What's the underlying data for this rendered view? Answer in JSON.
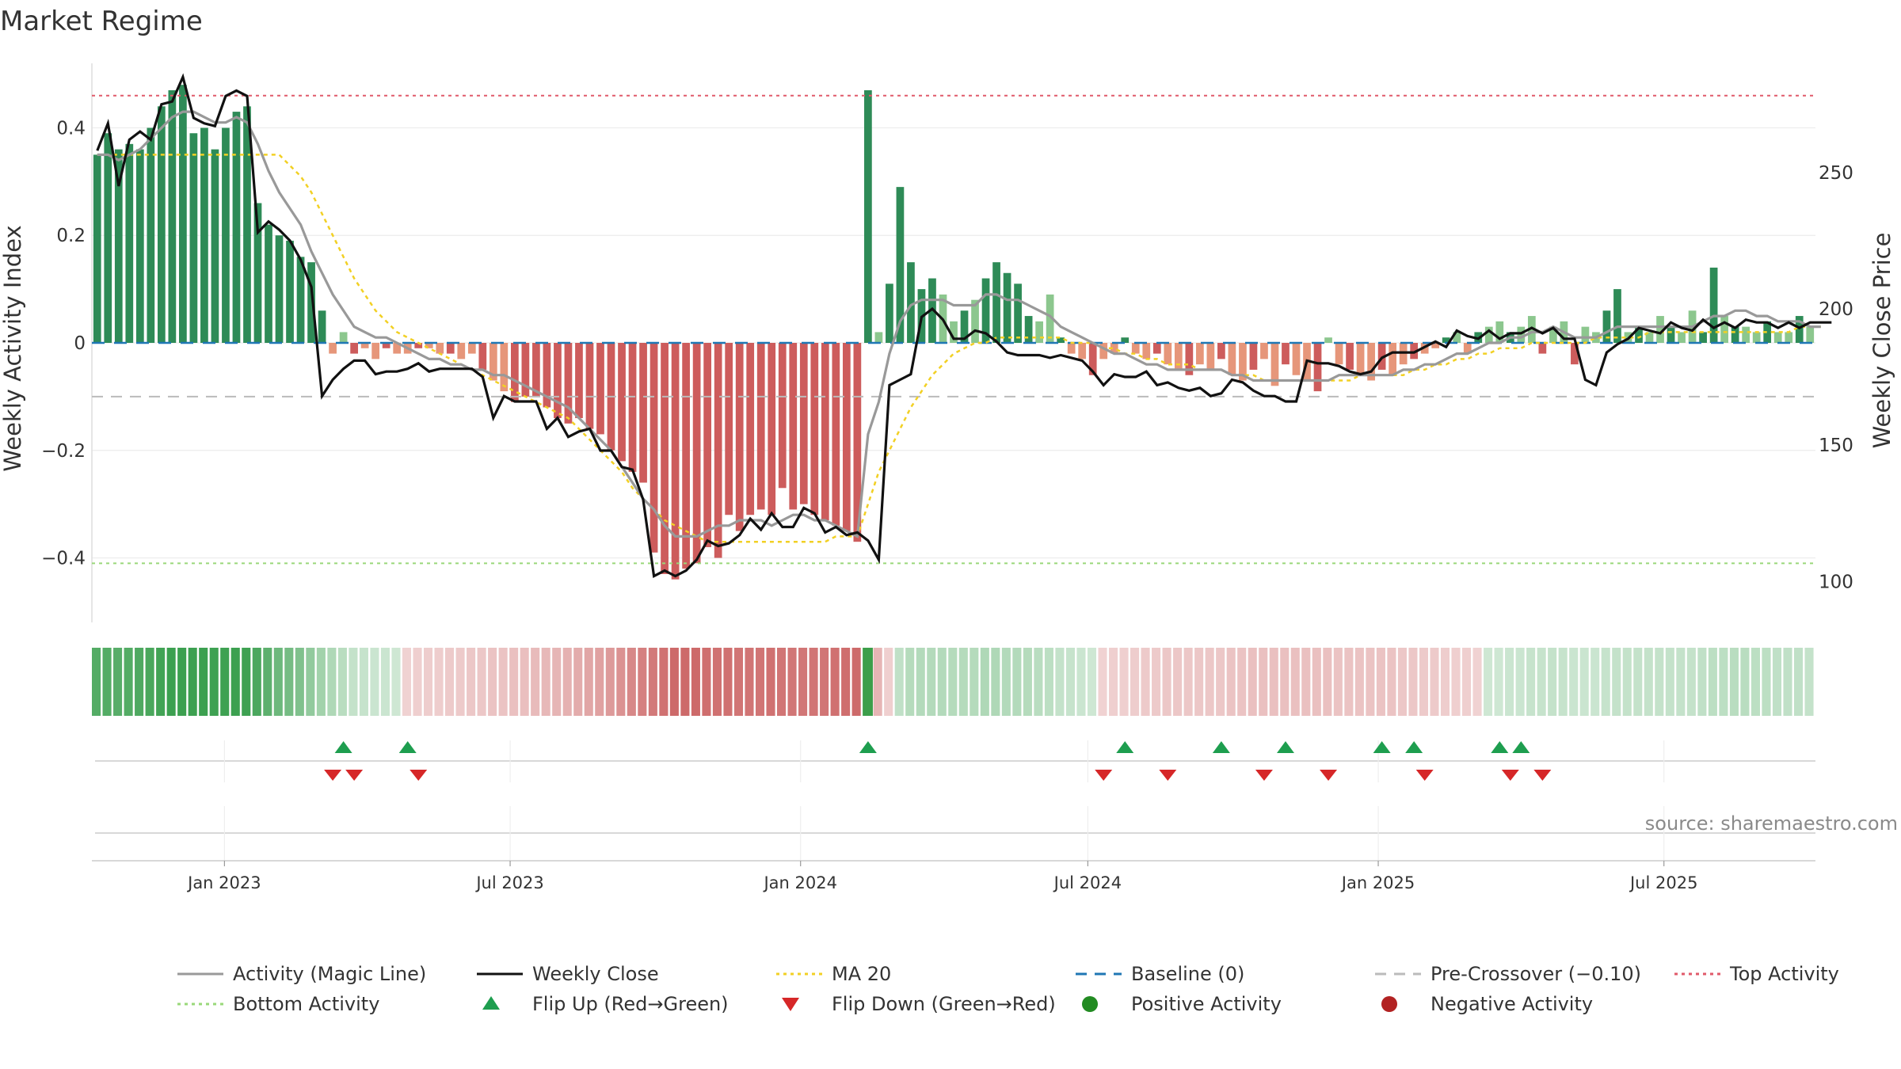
{
  "title": "Market Regime",
  "source": "source: sharemaestro.com",
  "colors": {
    "pos_dark": "#2e8b57",
    "pos_light": "#8cc78e",
    "neg_dark": "#cd5c5c",
    "neg_light": "#e6967a",
    "magic_line": "#999999",
    "weekly_close": "#111111",
    "ma20": "#f2d024",
    "baseline": "#1f77b4",
    "precross": "#bbbbbb",
    "top": "#e05a6a",
    "bottom": "#9ad87a",
    "flip_up": "#1e9e4f",
    "flip_down": "#d62728",
    "pos_dot": "#228b22",
    "neg_dot": "#b22222"
  },
  "chart_data": {
    "type": "bar",
    "title": "Market Regime",
    "ylabel_left": "Weekly Activity Index",
    "ylabel_right": "Weekly Close Price",
    "x_start": "2022-10-09",
    "x_end": "2025-10-05",
    "x_ticks": [
      "Jan 2023",
      "Jul 2023",
      "Jan 2024",
      "Jul 2024",
      "Jan 2025",
      "Jul 2025"
    ],
    "x_tick_dates": [
      "2023-01-01",
      "2023-07-01",
      "2024-01-01",
      "2024-07-01",
      "2025-01-01",
      "2025-07-01"
    ],
    "y_left_range": [
      -0.52,
      0.52
    ],
    "y_left_ticks": [
      0.4,
      0.2,
      0,
      -0.2,
      -0.4
    ],
    "y_left_tick_labels": [
      "0.4",
      "0.2",
      "0",
      "−0.2",
      "−0.4"
    ],
    "y_right_range": [
      85,
      290
    ],
    "y_right_ticks": [
      250,
      200,
      150,
      100
    ],
    "y_right_tick_labels": [
      "250",
      "200",
      "150",
      "100"
    ],
    "top_activity": 0.46,
    "bottom_activity": -0.41,
    "baseline": 0,
    "pre_crossover": -0.1,
    "activity_bars": [
      0.35,
      0.39,
      0.36,
      0.37,
      0.36,
      0.4,
      0.44,
      0.47,
      0.48,
      0.39,
      0.4,
      0.36,
      0.4,
      0.43,
      0.44,
      0.26,
      0.22,
      0.2,
      0.19,
      0.16,
      0.15,
      0.06,
      -0.02,
      0.02,
      -0.02,
      -0.01,
      -0.03,
      -0.01,
      -0.02,
      -0.02,
      -0.01,
      -0.01,
      -0.02,
      -0.02,
      -0.03,
      -0.02,
      -0.05,
      -0.07,
      -0.09,
      -0.11,
      -0.1,
      -0.1,
      -0.12,
      -0.14,
      -0.15,
      -0.14,
      -0.16,
      -0.17,
      -0.2,
      -0.22,
      -0.24,
      -0.26,
      -0.39,
      -0.43,
      -0.44,
      -0.42,
      -0.41,
      -0.38,
      -0.4,
      -0.32,
      -0.35,
      -0.32,
      -0.31,
      -0.32,
      -0.27,
      -0.31,
      -0.3,
      -0.32,
      -0.33,
      -0.34,
      -0.35,
      -0.37,
      0.47,
      0.02,
      0.11,
      0.29,
      0.15,
      0.1,
      0.12,
      0.09,
      0.04,
      0.06,
      0.08,
      0.12,
      0.15,
      0.13,
      0.11,
      0.05,
      0.04,
      0.09,
      0.01,
      -0.02,
      -0.03,
      -0.06,
      -0.03,
      -0.02,
      0.01,
      -0.02,
      -0.03,
      -0.02,
      -0.04,
      -0.05,
      -0.06,
      -0.04,
      -0.05,
      -0.03,
      -0.06,
      -0.07,
      -0.05,
      -0.03,
      -0.08,
      -0.04,
      -0.06,
      -0.07,
      -0.09,
      0.01,
      -0.04,
      -0.05,
      -0.06,
      -0.07,
      -0.05,
      -0.06,
      -0.04,
      -0.03,
      -0.02,
      -0.01,
      0.01,
      0.02,
      -0.02,
      0.02,
      0.03,
      0.04,
      0.02,
      0.03,
      0.05,
      -0.02,
      0.03,
      0.04,
      -0.04,
      0.03,
      0.02,
      0.06,
      0.1,
      0.02,
      0.03,
      0.02,
      0.05,
      0.03,
      0.02,
      0.06,
      0.02,
      0.14,
      0.05,
      0.03,
      0.03,
      0.02,
      0.04,
      0.02,
      0.02,
      0.05,
      0.03
    ],
    "magic_line": [
      0.35,
      0.35,
      0.34,
      0.35,
      0.36,
      0.38,
      0.4,
      0.42,
      0.43,
      0.43,
      0.42,
      0.41,
      0.41,
      0.42,
      0.41,
      0.37,
      0.32,
      0.28,
      0.25,
      0.22,
      0.17,
      0.13,
      0.09,
      0.06,
      0.03,
      0.02,
      0.01,
      0.01,
      0.0,
      -0.01,
      -0.02,
      -0.03,
      -0.03,
      -0.04,
      -0.04,
      -0.05,
      -0.05,
      -0.06,
      -0.06,
      -0.07,
      -0.08,
      -0.09,
      -0.1,
      -0.11,
      -0.12,
      -0.14,
      -0.16,
      -0.18,
      -0.2,
      -0.23,
      -0.26,
      -0.29,
      -0.31,
      -0.34,
      -0.36,
      -0.36,
      -0.36,
      -0.35,
      -0.34,
      -0.34,
      -0.33,
      -0.33,
      -0.33,
      -0.34,
      -0.33,
      -0.32,
      -0.32,
      -0.33,
      -0.33,
      -0.34,
      -0.35,
      -0.36,
      -0.17,
      -0.11,
      -0.02,
      0.04,
      0.07,
      0.08,
      0.08,
      0.08,
      0.07,
      0.07,
      0.07,
      0.09,
      0.09,
      0.08,
      0.08,
      0.07,
      0.06,
      0.05,
      0.03,
      0.02,
      0.01,
      0.0,
      -0.01,
      -0.02,
      -0.02,
      -0.03,
      -0.04,
      -0.04,
      -0.05,
      -0.05,
      -0.05,
      -0.05,
      -0.05,
      -0.05,
      -0.06,
      -0.06,
      -0.07,
      -0.07,
      -0.07,
      -0.07,
      -0.07,
      -0.07,
      -0.07,
      -0.07,
      -0.06,
      -0.06,
      -0.06,
      -0.06,
      -0.06,
      -0.06,
      -0.05,
      -0.05,
      -0.04,
      -0.04,
      -0.03,
      -0.02,
      -0.02,
      -0.01,
      0.0,
      0.0,
      0.01,
      0.01,
      0.02,
      0.02,
      0.03,
      0.02,
      0.01,
      0.01,
      0.01,
      0.02,
      0.03,
      0.03,
      0.03,
      0.03,
      0.03,
      0.03,
      0.03,
      0.03,
      0.04,
      0.05,
      0.05,
      0.06,
      0.06,
      0.05,
      0.05,
      0.04,
      0.04,
      0.04,
      0.03,
      0.03
    ],
    "ma20": [
      0.35,
      0.35,
      0.35,
      0.35,
      0.35,
      0.35,
      0.35,
      0.35,
      0.35,
      0.35,
      0.35,
      0.35,
      0.35,
      0.35,
      0.35,
      0.35,
      0.35,
      0.35,
      0.33,
      0.31,
      0.28,
      0.24,
      0.2,
      0.16,
      0.12,
      0.09,
      0.06,
      0.04,
      0.02,
      0.01,
      0.0,
      -0.01,
      -0.02,
      -0.03,
      -0.04,
      -0.05,
      -0.06,
      -0.07,
      -0.08,
      -0.09,
      -0.1,
      -0.11,
      -0.12,
      -0.13,
      -0.14,
      -0.16,
      -0.18,
      -0.2,
      -0.22,
      -0.24,
      -0.27,
      -0.29,
      -0.31,
      -0.33,
      -0.34,
      -0.35,
      -0.36,
      -0.37,
      -0.37,
      -0.37,
      -0.37,
      -0.37,
      -0.37,
      -0.37,
      -0.37,
      -0.37,
      -0.37,
      -0.37,
      -0.37,
      -0.36,
      -0.36,
      -0.36,
      -0.3,
      -0.24,
      -0.2,
      -0.16,
      -0.12,
      -0.09,
      -0.06,
      -0.04,
      -0.02,
      -0.01,
      0.0,
      0.0,
      0.01,
      0.01,
      0.01,
      0.01,
      0.01,
      0.01,
      0.01,
      0.0,
      0.0,
      0.0,
      -0.01,
      -0.01,
      -0.02,
      -0.02,
      -0.03,
      -0.03,
      -0.04,
      -0.04,
      -0.04,
      -0.05,
      -0.05,
      -0.05,
      -0.06,
      -0.06,
      -0.06,
      -0.07,
      -0.07,
      -0.07,
      -0.07,
      -0.07,
      -0.07,
      -0.07,
      -0.07,
      -0.07,
      -0.06,
      -0.06,
      -0.06,
      -0.06,
      -0.06,
      -0.05,
      -0.05,
      -0.04,
      -0.04,
      -0.03,
      -0.03,
      -0.02,
      -0.02,
      -0.01,
      -0.01,
      -0.01,
      0.0,
      0.0,
      0.0,
      0.0,
      0.0,
      0.0,
      0.01,
      0.01,
      0.01,
      0.01,
      0.01,
      0.02,
      0.02,
      0.02,
      0.02,
      0.02,
      0.02,
      0.02,
      0.02,
      0.02,
      0.02,
      0.02,
      0.02,
      0.02,
      0.02,
      0.03,
      0.03,
      0.03
    ],
    "weekly_close": [
      258,
      268,
      245,
      262,
      265,
      262,
      275,
      276,
      285,
      270,
      268,
      267,
      278,
      280,
      278,
      228,
      232,
      229,
      225,
      218,
      208,
      168,
      174,
      178,
      181,
      181,
      176,
      177,
      177,
      178,
      180,
      177,
      178,
      178,
      178,
      178,
      175,
      160,
      168,
      166,
      166,
      166,
      156,
      160,
      153,
      155,
      156,
      148,
      148,
      142,
      141,
      130,
      102,
      104,
      102,
      104,
      108,
      115,
      113,
      114,
      117,
      123,
      119,
      125,
      120,
      120,
      127,
      125,
      118,
      120,
      117,
      118,
      115,
      108,
      172,
      174,
      176,
      197,
      200,
      196,
      189,
      189,
      192,
      191,
      188,
      184,
      183,
      183,
      183,
      182,
      183,
      182,
      181,
      177,
      172,
      176,
      175,
      175,
      177,
      172,
      173,
      171,
      170,
      171,
      168,
      169,
      174,
      173,
      170,
      168,
      168,
      166,
      166,
      181,
      180,
      180,
      179,
      177,
      176,
      177,
      182,
      184,
      184,
      184,
      186,
      188,
      186,
      192,
      190,
      189,
      192,
      189,
      191,
      191,
      193,
      191,
      193,
      189,
      189,
      174,
      172,
      184,
      187,
      189,
      193,
      192,
      191,
      195,
      193,
      192,
      196,
      193,
      195,
      193,
      196,
      195,
      195,
      193,
      195,
      193,
      195,
      195,
      195
    ],
    "flip_up_weeks": [
      23,
      29,
      72,
      96,
      105,
      111,
      120,
      123,
      131,
      133
    ],
    "flip_down_weeks": [
      22,
      24,
      30,
      94,
      100,
      109,
      115,
      124,
      132,
      135
    ],
    "legend": [
      {
        "label": "Activity (Magic Line)",
        "kind": "line"
      },
      {
        "label": "Weekly Close",
        "kind": "line"
      },
      {
        "label": "MA 20",
        "kind": "dotted"
      },
      {
        "label": "Baseline (0)",
        "kind": "dashed"
      },
      {
        "label": "Pre-Crossover (−0.10)",
        "kind": "dashed"
      },
      {
        "label": "Top Activity",
        "kind": "dotted"
      },
      {
        "label": "Bottom Activity",
        "kind": "dotted"
      },
      {
        "label": "Flip Up (Red→Green)",
        "kind": "up"
      },
      {
        "label": "Flip Down (Green→Red)",
        "kind": "down"
      },
      {
        "label": "Positive Activity",
        "kind": "dot"
      },
      {
        "label": "Negative Activity",
        "kind": "dot"
      }
    ]
  }
}
